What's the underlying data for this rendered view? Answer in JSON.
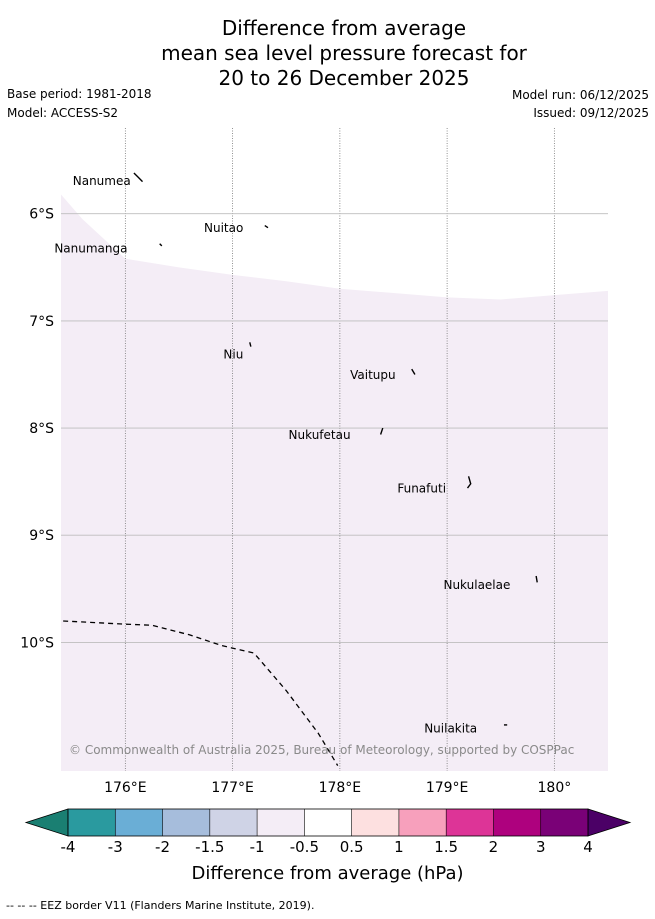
{
  "title": {
    "line1": "Difference from average",
    "line2": "mean sea level pressure forecast for",
    "line3": "20 to 26 December 2025"
  },
  "meta": {
    "base_period": "Base period: 1981-2018",
    "model": "Model: ACCESS-S2",
    "model_run": "Model run: 06/12/2025",
    "issued": "Issued: 09/12/2025"
  },
  "map": {
    "lon_range": [
      175.4,
      180.5
    ],
    "lat_range": [
      -11.2,
      -5.2
    ],
    "lon_ticks": [
      {
        "value": 176,
        "label": "176°E"
      },
      {
        "value": 177,
        "label": "177°E"
      },
      {
        "value": 178,
        "label": "178°E"
      },
      {
        "value": 179,
        "label": "179°E"
      },
      {
        "value": 180,
        "label": "180°"
      }
    ],
    "lat_ticks": [
      {
        "value": -6,
        "label": "6°S"
      },
      {
        "value": -7,
        "label": "7°S"
      },
      {
        "value": -8,
        "label": "8°S"
      },
      {
        "value": -9,
        "label": "9°S"
      },
      {
        "value": -10,
        "label": "10°S"
      }
    ],
    "fill_color": "#f4edf6",
    "fill_boundary": [
      [
        175.4,
        -5.82
      ],
      [
        175.6,
        -6.05
      ],
      [
        176.0,
        -6.42
      ],
      [
        176.5,
        -6.5
      ],
      [
        177.0,
        -6.57
      ],
      [
        177.5,
        -6.63
      ],
      [
        178.0,
        -6.7
      ],
      [
        178.5,
        -6.74
      ],
      [
        179.0,
        -6.78
      ],
      [
        179.5,
        -6.8
      ],
      [
        180.0,
        -6.76
      ],
      [
        180.5,
        -6.72
      ]
    ],
    "islands": [
      {
        "name": "Nanumea",
        "shape": [
          [
            176.08,
            -5.62
          ],
          [
            176.12,
            -5.66
          ],
          [
            176.16,
            -5.7
          ]
        ],
        "label_at": [
          176.05,
          -5.73
        ]
      },
      {
        "name": "Nuitao",
        "shape": [
          [
            177.3,
            -6.11
          ],
          [
            177.33,
            -6.13
          ]
        ],
        "label_at": [
          177.1,
          -6.17
        ]
      },
      {
        "name": "Nanumanga",
        "shape": [
          [
            176.32,
            -6.28
          ],
          [
            176.34,
            -6.3
          ]
        ],
        "label_at": [
          176.02,
          -6.36
        ]
      },
      {
        "name": "Niu",
        "shape": [
          [
            177.16,
            -7.2
          ],
          [
            177.17,
            -7.24
          ]
        ],
        "label_at": [
          177.1,
          -7.35
        ]
      },
      {
        "name": "Vaitupu",
        "shape": [
          [
            178.67,
            -7.45
          ],
          [
            178.7,
            -7.5
          ]
        ],
        "label_at": [
          178.52,
          -7.54
        ]
      },
      {
        "name": "Nukufetau",
        "shape": [
          [
            178.4,
            -8.0
          ],
          [
            178.38,
            -8.06
          ]
        ],
        "label_at": [
          178.1,
          -8.1
        ]
      },
      {
        "name": "Funafuti",
        "shape": [
          [
            179.2,
            -8.45
          ],
          [
            179.22,
            -8.52
          ],
          [
            179.19,
            -8.56
          ]
        ],
        "label_at": [
          178.99,
          -8.6
        ]
      },
      {
        "name": "Nukulaelae",
        "shape": [
          [
            179.83,
            -9.38
          ],
          [
            179.84,
            -9.44
          ]
        ],
        "label_at": [
          179.59,
          -9.5
        ]
      },
      {
        "name": "Nuilakita",
        "shape": [
          [
            179.53,
            -10.77
          ],
          [
            179.56,
            -10.77
          ]
        ],
        "label_at": [
          179.28,
          -10.84
        ]
      }
    ],
    "eez_border": [
      [
        175.42,
        -9.8
      ],
      [
        176.0,
        -9.83
      ],
      [
        176.25,
        -9.84
      ],
      [
        176.6,
        -9.93
      ],
      [
        176.9,
        -10.03
      ],
      [
        177.2,
        -10.1
      ],
      [
        177.5,
        -10.45
      ],
      [
        177.8,
        -10.85
      ],
      [
        177.98,
        -11.15
      ]
    ],
    "copyright": "© Commonwealth of Australia 2025, Bureau of Meteorology, supported by COSPPac"
  },
  "colorbar": {
    "label": "Difference from average (hPa)",
    "ticks": [
      "-4",
      "-3",
      "-2",
      "-1.5",
      "-1",
      "-0.5",
      "0.5",
      "1",
      "1.5",
      "2",
      "3",
      "4"
    ],
    "under_color": "#1a7f72",
    "over_color": "#4b0066",
    "colors": [
      "#1a7f72",
      "#2a9a9f",
      "#6aaed6",
      "#a6bddc",
      "#cfd3e6",
      "#f4edf6",
      "#ffffff",
      "#fde0e0",
      "#f7a0bc",
      "#dd3497",
      "#ae017e",
      "#7a0177"
    ]
  },
  "footer": "-- -- -- EEZ border V11 (Flanders Marine Institute, 2019)."
}
